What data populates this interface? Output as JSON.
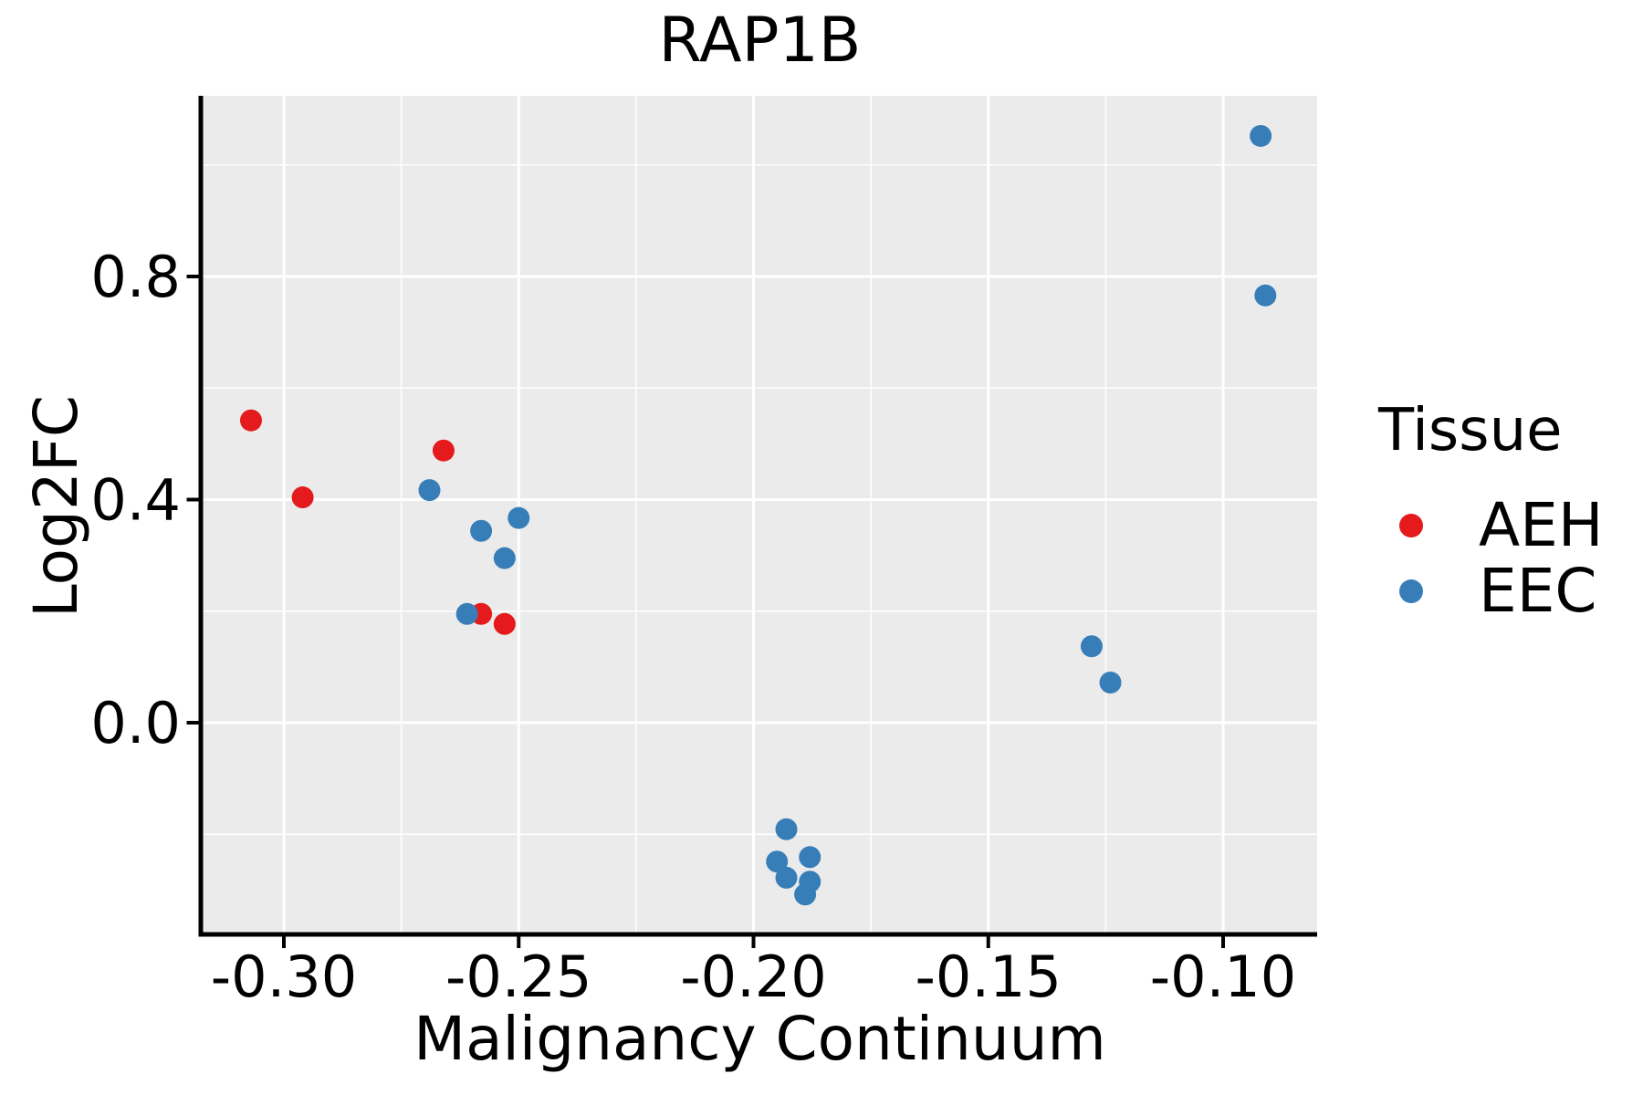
{
  "chart_data": {
    "type": "scatter",
    "title": "RAP1B",
    "xlabel": "Malignancy Continuum",
    "ylabel": "Log2FC",
    "x_ticks": {
      "values": [
        -0.3,
        -0.25,
        -0.2,
        -0.15,
        -0.1
      ],
      "labels": [
        "-0.30",
        "-0.25",
        "-0.20",
        "-0.15",
        "-0.10"
      ]
    },
    "y_ticks": {
      "values": [
        0.0,
        0.4,
        0.8
      ],
      "labels": [
        "0.0",
        "0.4",
        "0.8"
      ]
    },
    "x_minor": [
      -0.275,
      -0.225,
      -0.175,
      -0.125
    ],
    "y_minor": [
      1.0,
      0.6,
      0.2,
      -0.2
    ],
    "xlim": [
      -0.317,
      -0.08
    ],
    "ylim": [
      -0.377,
      1.124
    ],
    "grid": "white major and minor gridlines on gray panel",
    "legend": {
      "title": "Tissue",
      "position": "right",
      "items": [
        {
          "label": "AEH",
          "color": "#E41A1C"
        },
        {
          "label": "EEC",
          "color": "#377EB8"
        }
      ]
    },
    "series": [
      {
        "name": "AEH",
        "color": "#E41A1C",
        "points": [
          [
            -0.307,
            0.542
          ],
          [
            -0.296,
            0.404
          ],
          [
            -0.266,
            0.488
          ],
          [
            -0.258,
            0.195
          ],
          [
            -0.253,
            0.177
          ]
        ]
      },
      {
        "name": "EEC",
        "color": "#377EB8",
        "points": [
          [
            -0.269,
            0.417
          ],
          [
            -0.25,
            0.367
          ],
          [
            -0.258,
            0.344
          ],
          [
            -0.253,
            0.295
          ],
          [
            -0.261,
            0.195
          ],
          [
            -0.193,
            -0.191
          ],
          [
            -0.195,
            -0.249
          ],
          [
            -0.188,
            -0.241
          ],
          [
            -0.193,
            -0.278
          ],
          [
            -0.188,
            -0.285
          ],
          [
            -0.189,
            -0.308
          ],
          [
            -0.128,
            0.137
          ],
          [
            -0.124,
            0.072
          ],
          [
            -0.092,
            1.052
          ],
          [
            -0.091,
            0.766
          ]
        ]
      }
    ],
    "colors": {
      "panel_bg": "#EBEBEB",
      "grid": "#FFFFFF",
      "axis": "#000000",
      "text": "#000000",
      "figure_bg": "#FFFFFF"
    }
  }
}
